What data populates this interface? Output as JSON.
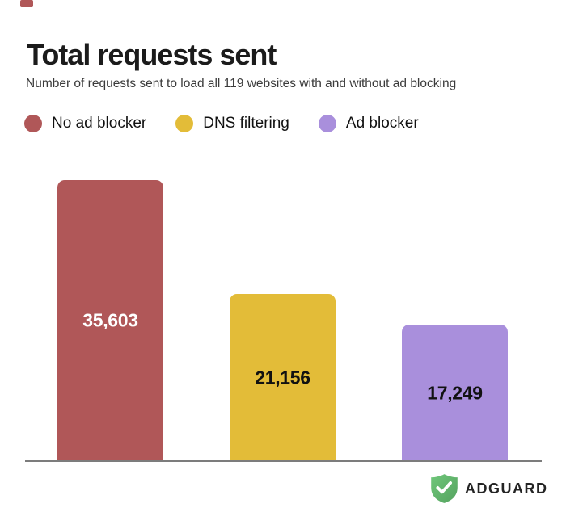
{
  "decorations": {
    "top_left_mark_color": "#b05758",
    "axis_line_color": "#7c7c7c"
  },
  "header": {
    "title": "Total requests sent",
    "subtitle": "Number of requests sent to load all 119 websites with and without ad blocking"
  },
  "chart_data": {
    "type": "bar",
    "title": "Total requests sent",
    "subtitle": "Number of requests sent to load all 119 websites with and without ad blocking",
    "categories": [
      "No ad blocker",
      "DNS filtering",
      "Ad blocker"
    ],
    "values": [
      35603,
      21156,
      17249
    ],
    "value_labels": [
      "35,603",
      "21,156",
      "17,249"
    ],
    "colors": [
      "#b05758",
      "#e3bc38",
      "#a98fdc"
    ],
    "value_label_colors": [
      "#ffffff",
      "#111111",
      "#111111"
    ],
    "xlabel": "",
    "ylabel": "",
    "ylim": [
      0,
      35603
    ],
    "grid": false,
    "legend_position": "top",
    "baseline_axis": true
  },
  "footer": {
    "brand": "ADGUARD",
    "logo_icon": "adguard-shield-icon",
    "shield_green_light": "#6fc77a",
    "shield_green_dark": "#55a25f",
    "check_color": "#ffffff"
  }
}
